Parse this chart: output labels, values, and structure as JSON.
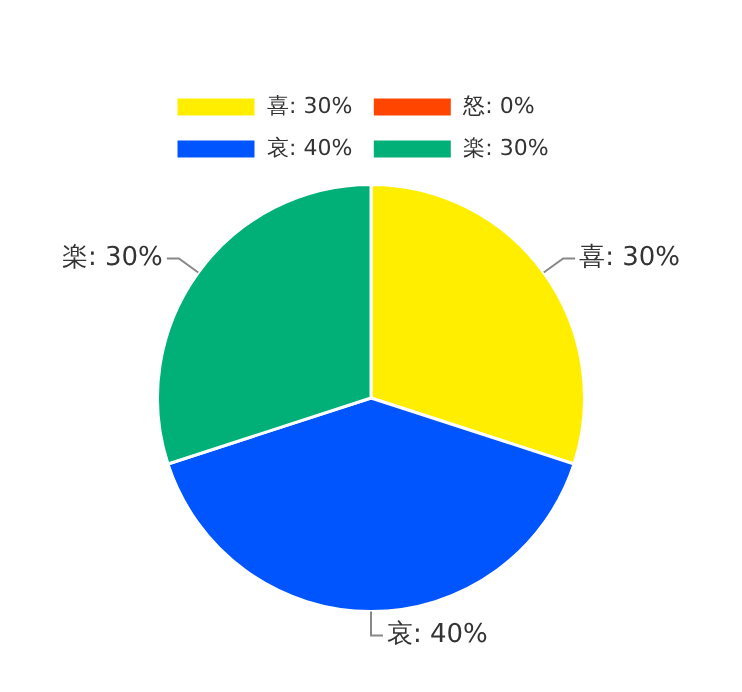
{
  "chart_data": {
    "type": "pie",
    "categories": [
      "喜",
      "怒",
      "哀",
      "楽"
    ],
    "values": [
      30,
      0,
      40,
      30
    ],
    "colors": [
      "#ffee00",
      "#ff4500",
      "#0055ff",
      "#00b077"
    ],
    "value_labels": [
      "30%",
      "0%",
      "40%",
      "30%"
    ],
    "legend": "top left"
  }
}
